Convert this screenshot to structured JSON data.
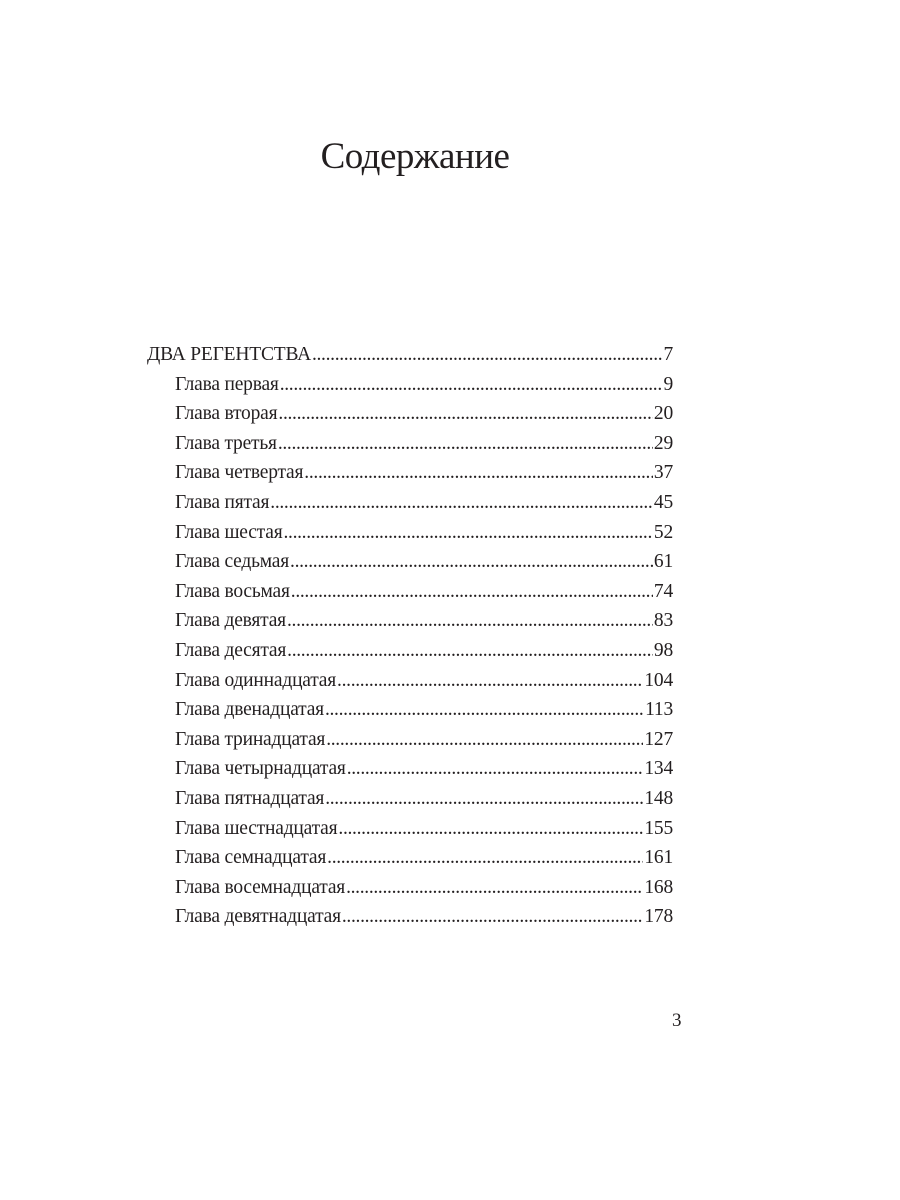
{
  "title": "Содержание",
  "toc": {
    "part": {
      "label": "ДВА РЕГЕНТСТВА",
      "page": "7"
    },
    "chapters": [
      {
        "label": "Глава первая",
        "page": "9"
      },
      {
        "label": "Глава вторая",
        "page": "20"
      },
      {
        "label": "Глава третья",
        "page": "29"
      },
      {
        "label": "Глава четвертая",
        "page": "37"
      },
      {
        "label": "Глава пятая",
        "page": "45"
      },
      {
        "label": "Глава шестая",
        "page": "52"
      },
      {
        "label": "Глава седьмая",
        "page": "61"
      },
      {
        "label": "Глава восьмая",
        "page": "74"
      },
      {
        "label": "Глава девятая",
        "page": "83"
      },
      {
        "label": "Глава десятая",
        "page": "98"
      },
      {
        "label": "Глава одиннадцатая",
        "page": "104"
      },
      {
        "label": "Глава двенадцатая",
        "page": "113"
      },
      {
        "label": "Глава тринадцатая",
        "page": "127"
      },
      {
        "label": "Глава четырнадцатая",
        "page": "134"
      },
      {
        "label": "Глава пятнадцатая",
        "page": "148"
      },
      {
        "label": "Глава шестнадцатая",
        "page": "155"
      },
      {
        "label": "Глава семнадцатая",
        "page": "161"
      },
      {
        "label": "Глава восемнадцатая",
        "page": "168"
      },
      {
        "label": "Глава девятнадцатая",
        "page": "178"
      }
    ]
  },
  "page_number": "3"
}
